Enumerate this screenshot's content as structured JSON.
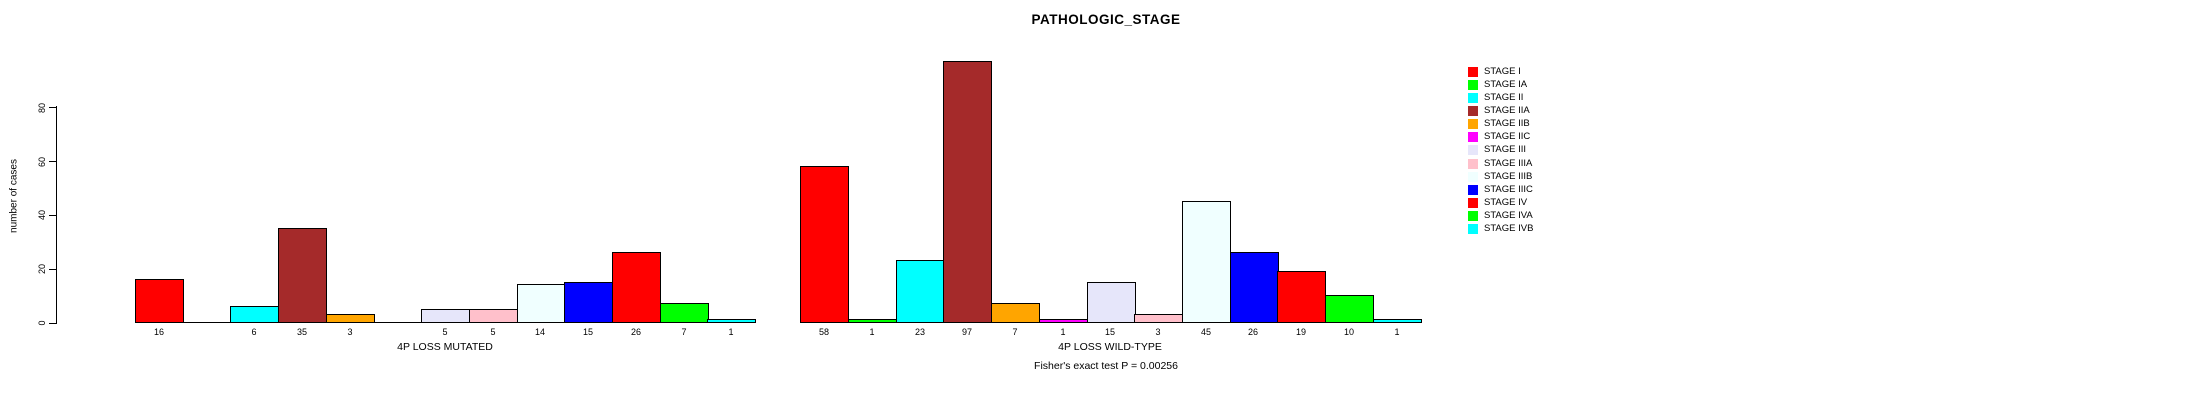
{
  "title": "PATHOLOGIC_STAGE",
  "footer": "Fisher's exact test P = 0.00256",
  "y_axis": {
    "label": "number of cases",
    "ticks": [
      0,
      20,
      40,
      60,
      80
    ]
  },
  "chart_data": {
    "type": "bar",
    "title": "PATHOLOGIC_STAGE",
    "xlabel": "",
    "ylabel": "number of cases",
    "yticks": [
      0,
      20,
      40,
      60,
      80
    ],
    "ylim": [
      0,
      100
    ],
    "grid": false,
    "legend_position": "right",
    "bar_value_labels": "shown below axis, hidden when value is 0",
    "categories": [
      "4P LOSS MUTATED",
      "4P LOSS WILD-TYPE"
    ],
    "series": [
      {
        "name": "STAGE I",
        "color": "#FF0000",
        "values": [
          16,
          58
        ]
      },
      {
        "name": "STAGE IA",
        "color": "#00FF00",
        "values": [
          0,
          1
        ]
      },
      {
        "name": "STAGE II",
        "color": "#00FFFF",
        "values": [
          6,
          23
        ]
      },
      {
        "name": "STAGE IIA",
        "color": "#A52A2A",
        "values": [
          35,
          97
        ]
      },
      {
        "name": "STAGE IIB",
        "color": "#FFA500",
        "values": [
          3,
          7
        ]
      },
      {
        "name": "STAGE IIC",
        "color": "#FF00FF",
        "values": [
          0,
          1
        ]
      },
      {
        "name": "STAGE III",
        "color": "#E6E6FA",
        "values": [
          5,
          15
        ]
      },
      {
        "name": "STAGE IIIA",
        "color": "#FFC0CB",
        "values": [
          5,
          3
        ]
      },
      {
        "name": "STAGE IIIB",
        "color": "#F0FFFF",
        "values": [
          14,
          45
        ]
      },
      {
        "name": "STAGE IIIC",
        "color": "#0000FF",
        "values": [
          15,
          26
        ]
      },
      {
        "name": "STAGE IV",
        "color": "#FF0000",
        "values": [
          26,
          19
        ]
      },
      {
        "name": "STAGE IVA",
        "color": "#00FF00",
        "values": [
          7,
          10
        ]
      },
      {
        "name": "STAGE IVB",
        "color": "#00FFFF",
        "values": [
          1,
          1
        ]
      }
    ],
    "annotation": "Fisher's exact test P = 0.00256"
  }
}
